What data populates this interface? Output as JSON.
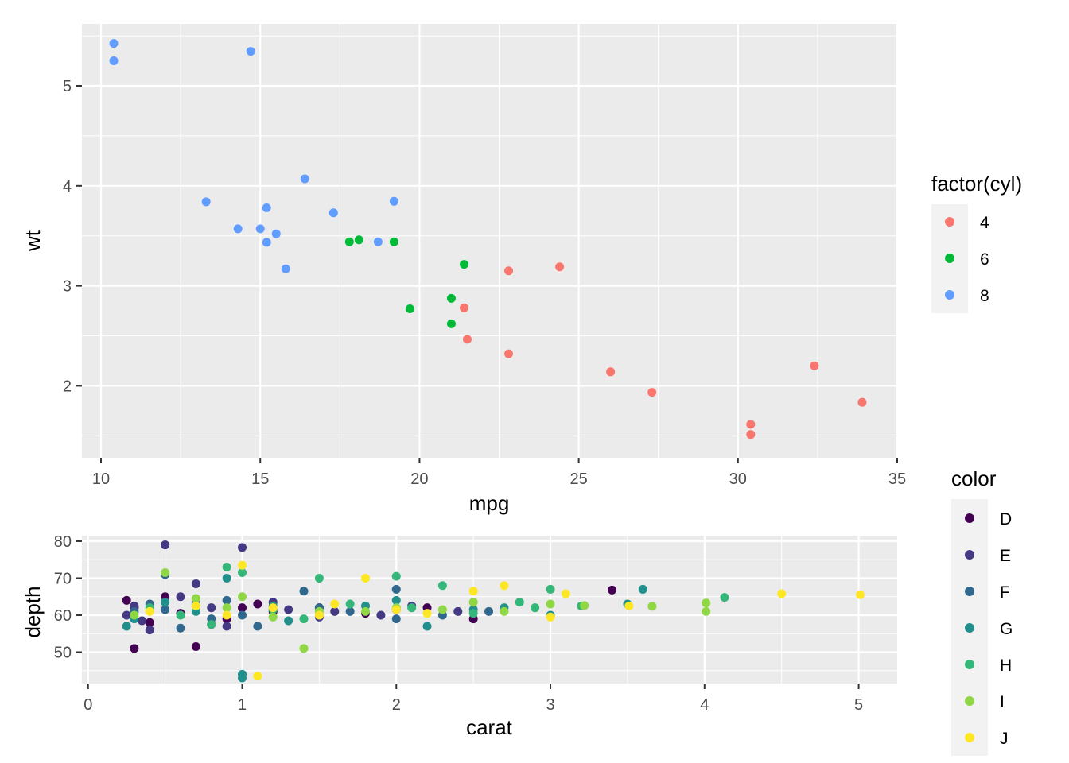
{
  "chart_data": [
    {
      "type": "scatter",
      "title": "",
      "xlabel": "mpg",
      "ylabel": "wt",
      "xlim": [
        9.4,
        35.0
      ],
      "ylim": [
        1.28,
        5.62
      ],
      "xticks": [
        10,
        15,
        20,
        25,
        30,
        35
      ],
      "yticks": [
        2,
        3,
        4,
        5
      ],
      "grid": true,
      "legend": {
        "title": "factor(cyl)",
        "placement": "right",
        "labels": [
          "4",
          "6",
          "8"
        ]
      },
      "colors": {
        "4": "#F8766D",
        "6": "#00BA38",
        "8": "#619CFF"
      },
      "series": [
        {
          "name": "4",
          "points": [
            [
              22.8,
              2.32
            ],
            [
              24.4,
              3.19
            ],
            [
              22.8,
              3.15
            ],
            [
              32.4,
              2.2
            ],
            [
              30.4,
              1.615
            ],
            [
              33.9,
              1.835
            ],
            [
              21.5,
              2.465
            ],
            [
              27.3,
              1.935
            ],
            [
              26.0,
              2.14
            ],
            [
              30.4,
              1.513
            ],
            [
              21.4,
              2.78
            ]
          ]
        },
        {
          "name": "6",
          "points": [
            [
              21.0,
              2.62
            ],
            [
              21.0,
              2.875
            ],
            [
              21.4,
              3.215
            ],
            [
              18.1,
              3.46
            ],
            [
              19.2,
              3.44
            ],
            [
              17.8,
              3.44
            ],
            [
              19.7,
              2.77
            ]
          ]
        },
        {
          "name": "8",
          "points": [
            [
              18.7,
              3.44
            ],
            [
              14.3,
              3.57
            ],
            [
              16.4,
              4.07
            ],
            [
              17.3,
              3.73
            ],
            [
              15.2,
              3.78
            ],
            [
              10.4,
              5.25
            ],
            [
              10.4,
              5.424
            ],
            [
              14.7,
              5.345
            ],
            [
              15.5,
              3.52
            ],
            [
              15.2,
              3.435
            ],
            [
              13.3,
              3.84
            ],
            [
              19.2,
              3.845
            ],
            [
              15.8,
              3.17
            ],
            [
              15.0,
              3.57
            ]
          ]
        }
      ]
    },
    {
      "type": "scatter",
      "title": "",
      "xlabel": "carat",
      "ylabel": "depth",
      "xlim": [
        -0.04,
        5.25
      ],
      "ylim": [
        41.5,
        81.5
      ],
      "xticks": [
        0,
        1,
        2,
        3,
        4,
        5
      ],
      "yticks": [
        50,
        60,
        70,
        80
      ],
      "grid": true,
      "legend": {
        "title": "color",
        "placement": "right",
        "labels": [
          "D",
          "E",
          "F",
          "G",
          "H",
          "I",
          "J"
        ]
      },
      "colors": {
        "D": "#440154",
        "E": "#443A83",
        "F": "#31688E",
        "G": "#21908C",
        "H": "#35B779",
        "I": "#8FD744",
        "J": "#FDE725"
      },
      "series": [
        {
          "name": "D",
          "points": [
            [
              0.3,
              51.0
            ],
            [
              0.7,
              51.5
            ],
            [
              0.4,
              58.0
            ],
            [
              0.5,
              65.0
            ],
            [
              1.0,
              62.0
            ],
            [
              1.5,
              62.0
            ],
            [
              2.0,
              61.5
            ],
            [
              2.5,
              59.0
            ],
            [
              3.4,
              66.8
            ],
            [
              0.3,
              62.0
            ],
            [
              0.7,
              63.5
            ],
            [
              1.2,
              61.0
            ],
            [
              0.5,
              79.0
            ],
            [
              0.6,
              60.5
            ],
            [
              0.9,
              59.0
            ],
            [
              1.8,
              60.5
            ],
            [
              0.25,
              64.0
            ],
            [
              0.8,
              57.5
            ],
            [
              1.1,
              63.0
            ],
            [
              2.2,
              62.0
            ]
          ]
        },
        {
          "name": "E",
          "points": [
            [
              0.5,
              79.0
            ],
            [
              1.0,
              78.3
            ],
            [
              0.3,
              62.5
            ],
            [
              0.8,
              62.0
            ],
            [
              1.2,
              63.5
            ],
            [
              1.6,
              61.0
            ],
            [
              2.1,
              62.5
            ],
            [
              2.4,
              61.0
            ],
            [
              0.4,
              56.0
            ],
            [
              0.7,
              68.5
            ],
            [
              0.9,
              57.0
            ],
            [
              1.5,
              59.5
            ],
            [
              0.6,
              65.0
            ],
            [
              0.35,
              58.5
            ],
            [
              1.9,
              60.0
            ],
            [
              1.3,
              61.5
            ],
            [
              0.25,
              60.0
            ]
          ]
        },
        {
          "name": "F",
          "points": [
            [
              0.3,
              61.0
            ],
            [
              0.5,
              61.5
            ],
            [
              0.7,
              63.0
            ],
            [
              1.0,
              60.0
            ],
            [
              1.5,
              62.0
            ],
            [
              2.0,
              59.0
            ],
            [
              2.3,
              60.0
            ],
            [
              2.6,
              61.0
            ],
            [
              0.5,
              71.0
            ],
            [
              1.1,
              57.0
            ],
            [
              1.4,
              66.5
            ],
            [
              0.9,
              64.0
            ],
            [
              0.6,
              56.5
            ],
            [
              1.7,
              61.0
            ],
            [
              0.4,
              63.0
            ],
            [
              0.8,
              59.0
            ],
            [
              2.0,
              67.0
            ],
            [
              1.2,
              61.5
            ]
          ]
        },
        {
          "name": "G",
          "points": [
            [
              1.0,
              44.0
            ],
            [
              1.0,
              43.0
            ],
            [
              0.3,
              59.0
            ],
            [
              0.7,
              61.0
            ],
            [
              1.2,
              62.5
            ],
            [
              1.5,
              60.0
            ],
            [
              2.0,
              64.0
            ],
            [
              2.7,
              62.0
            ],
            [
              3.0,
              60.0
            ],
            [
              3.6,
              67.0
            ],
            [
              3.5,
              63.0
            ],
            [
              0.9,
              70.0
            ],
            [
              2.2,
              57.0
            ],
            [
              1.8,
              62.5
            ],
            [
              0.5,
              63.5
            ],
            [
              1.3,
              58.5
            ],
            [
              2.5,
              61.5
            ],
            [
              0.25,
              57.0
            ]
          ]
        },
        {
          "name": "H",
          "points": [
            [
              0.9,
              73.0
            ],
            [
              1.0,
              71.5
            ],
            [
              1.5,
              70.0
            ],
            [
              2.0,
              70.5
            ],
            [
              2.3,
              68.0
            ],
            [
              2.8,
              63.5
            ],
            [
              3.0,
              67.0
            ],
            [
              3.2,
              62.5
            ],
            [
              4.13,
              64.8
            ],
            [
              0.6,
              60.0
            ],
            [
              1.2,
              61.5
            ],
            [
              1.7,
              63.0
            ],
            [
              2.5,
              60.5
            ],
            [
              0.4,
              62.0
            ],
            [
              0.8,
              57.5
            ],
            [
              2.9,
              62.0
            ],
            [
              1.4,
              59.0
            ],
            [
              2.1,
              62.0
            ]
          ]
        },
        {
          "name": "I",
          "points": [
            [
              1.4,
              51.0
            ],
            [
              0.5,
              71.5
            ],
            [
              1.0,
              65.0
            ],
            [
              1.5,
              61.0
            ],
            [
              2.0,
              62.0
            ],
            [
              2.5,
              63.5
            ],
            [
              3.0,
              63.0
            ],
            [
              3.22,
              62.6
            ],
            [
              3.66,
              62.4
            ],
            [
              4.01,
              63.3
            ],
            [
              4.01,
              61.0
            ],
            [
              0.3,
              60.0
            ],
            [
              0.7,
              64.5
            ],
            [
              1.2,
              59.5
            ],
            [
              1.8,
              61.0
            ],
            [
              2.3,
              61.5
            ],
            [
              2.7,
              61.0
            ],
            [
              0.9,
              62.0
            ]
          ]
        },
        {
          "name": "J",
          "points": [
            [
              1.1,
              43.5
            ],
            [
              1.0,
              73.5
            ],
            [
              1.8,
              70.0
            ],
            [
              2.5,
              66.5
            ],
            [
              3.1,
              65.8
            ],
            [
              3.51,
              62.5
            ],
            [
              4.5,
              65.8
            ],
            [
              5.01,
              65.5
            ],
            [
              0.4,
              61.0
            ],
            [
              0.7,
              62.5
            ],
            [
              1.2,
              62.0
            ],
            [
              1.5,
              60.0
            ],
            [
              2.0,
              61.5
            ],
            [
              2.2,
              60.5
            ],
            [
              3.0,
              59.5
            ],
            [
              2.7,
              68.0
            ],
            [
              0.9,
              60.0
            ],
            [
              1.6,
              63.0
            ]
          ]
        }
      ]
    }
  ]
}
